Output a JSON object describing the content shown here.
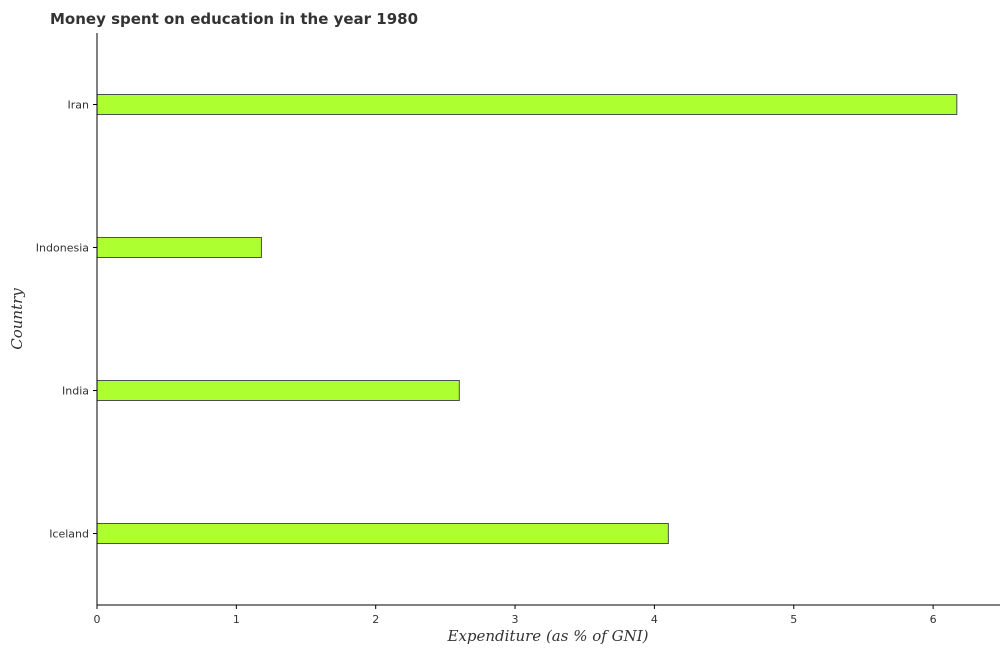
{
  "chart_data": {
    "type": "bar",
    "orientation": "horizontal",
    "title": "Money spent on education in the year 1980",
    "xlabel": "Expenditure (as % of GNI)",
    "ylabel": "Country",
    "categories": [
      "Iceland",
      "India",
      "Indonesia",
      "Iran"
    ],
    "values": [
      4.1,
      2.6,
      1.18,
      6.17
    ],
    "xlim": [
      0,
      6.48
    ],
    "xticks": [
      0,
      1,
      2,
      3,
      4,
      5,
      6
    ],
    "grid": false,
    "bar_color": "#adff2f"
  }
}
